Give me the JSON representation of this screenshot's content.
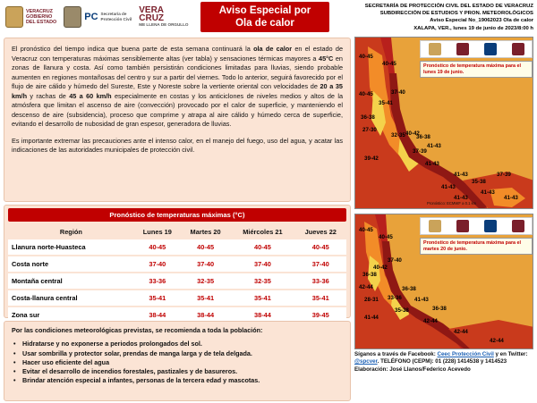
{
  "header_logos": {
    "veracruz": "VERACRUZ\nGOBIERNO\nDEL ESTADO",
    "sspc": "Secretaría de\nProtección Civil",
    "pc": "PC",
    "pc_sub": "Secretaría de\nProtección Civil",
    "veracruz_brand": "VERA\nCRUZ",
    "veracruz_tag": "ME LLENA DE ORGULLO"
  },
  "banner": {
    "line1": "Aviso Especial por",
    "line2": "Ola de calor"
  },
  "agency": {
    "line1": "SECRETARÍA DE PROTECCIÓN CIVIL DEL ESTADO DE VERACRUZ",
    "line2": "SUBDIRECCIÓN DE ESTUDIOS Y PRON. METEOROLÓGICOS",
    "line3": "Aviso Especial No_19062023 Ola de calor",
    "line4": "XALAPA, VER., lunes 19 de junio de 2023/8:00 h"
  },
  "intro": {
    "p1_a": "El pronóstico del tiempo indica que buena parte de esta semana continuará la ",
    "p1_b": "ola de calor",
    "p1_c": " en el estado de Veracruz con temperaturas máximas sensiblemente altas (ver tabla) y sensaciones térmicas mayores a ",
    "p1_d": "45°C",
    "p1_e": " en zonas de llanura y costa. Así como también persistirán condiciones limitadas para lluvias, siendo probable aumenten en regiones montañosas del centro y sur a partir del viernes. Todo lo anterior, seguirá favorecido por el flujo de aire cálido y húmedo del Sureste, Este y Noreste sobre la vertiente oriental con velocidades de ",
    "p1_f": "20 a 35 km/h",
    "p1_g": " y rachas de ",
    "p1_h": "45 a 60 km/h",
    "p1_i": " especialmente en costas y los anticiclones de niveles medios y altos de la atmósfera que limitan el ascenso de aire (convección) provocado por el calor de superficie, y manteniendo el descenso de aire (subsidencia), proceso que comprime y atrapa al aire cálido y húmedo cerca de superficie, evitando el desarrollo de nubosidad de gran espesor, generadora de lluvias.",
    "p2": "Es importante extremar las precauciones ante el intenso calor, en el manejo del fuego, uso del agua, y acatar las indicaciones de las autoridades municipales de protección civil."
  },
  "forecast_table": {
    "title": "Pronóstico de temperaturas máximas (°C)",
    "headers": [
      "Región",
      "Lunes 19",
      "Martes 20",
      "Miércoles 21",
      "Jueves 22"
    ],
    "rows": [
      {
        "region": "Llanura norte-Huasteca",
        "values": [
          "40-45",
          "40-45",
          "40-45",
          "40-45"
        ]
      },
      {
        "region": "Costa norte",
        "values": [
          "37-40",
          "37-40",
          "37-40",
          "37-40"
        ]
      },
      {
        "region": "Montaña central",
        "values": [
          "33-36",
          "32-35",
          "32-35",
          "33-36"
        ]
      },
      {
        "region": "Costa-llanura central",
        "values": [
          "35-41",
          "35-41",
          "35-41",
          "35-41"
        ]
      },
      {
        "region": "Zona sur",
        "values": [
          "38-44",
          "38-44",
          "38-44",
          "39-45"
        ]
      }
    ]
  },
  "recommendations": {
    "heading": "Por las condiciones meteorológicas previstas, se recomienda a toda la población:",
    "items": [
      "Hidratarse y no exponerse a periodos prolongados del sol.",
      "Usar sombrilla y protector solar, prendas de manga larga y de tela delgada.",
      "Hacer uso eficiente del agua",
      "Evitar el desarrollo de incendios forestales, pastizales y de basureros.",
      "Brindar atención especial a infantes, personas de la tercera edad y mascotas."
    ]
  },
  "map1": {
    "caption": "Pronóstico de temperatura máxima para el lunes 19 de junio.",
    "credit": "Pronóstico: ECMWF a 0.1 km",
    "labels": [
      "40-45",
      "40-45",
      "37-40",
      "40-45",
      "35-41",
      "36-38",
      "27-30",
      "40-42",
      "32-35",
      "36-38",
      "41-43",
      "37-39",
      "41-43",
      "39-42",
      "41-43",
      "35-38",
      "41-43",
      "41-43",
      "37-39",
      "41-43",
      "41-43"
    ]
  },
  "map2": {
    "caption": "Pronóstico de temperatura máxima para el martes 20 de junio.",
    "labels": [
      "40-45",
      "40-45",
      "37-40",
      "36-38",
      "40-42",
      "42-44",
      "28-31",
      "33-36",
      "36-38",
      "41-43",
      "35-38",
      "36-38",
      "41-44",
      "42-44",
      "42-44",
      "42-44"
    ]
  },
  "contact": {
    "line1_a": "Síganos a través de Facebook: ",
    "line1_link": "Ceec Protección Civil",
    "line1_b": " y en Twitter:",
    "line2_link": "@spcver",
    "line2_b": ". TELÉFONO (CEPM): 01 (228) 1414538 y 1414523",
    "line3": "Elaboración: José Llanos/Federico Acevedo"
  },
  "colors": {
    "banner": "#c00000",
    "panel": "#fbe4d5",
    "map_hot": "#b8201c",
    "map_warm": "#f28c28",
    "map_cool": "#f4d24b",
    "map_sea": "#e8a23a"
  }
}
